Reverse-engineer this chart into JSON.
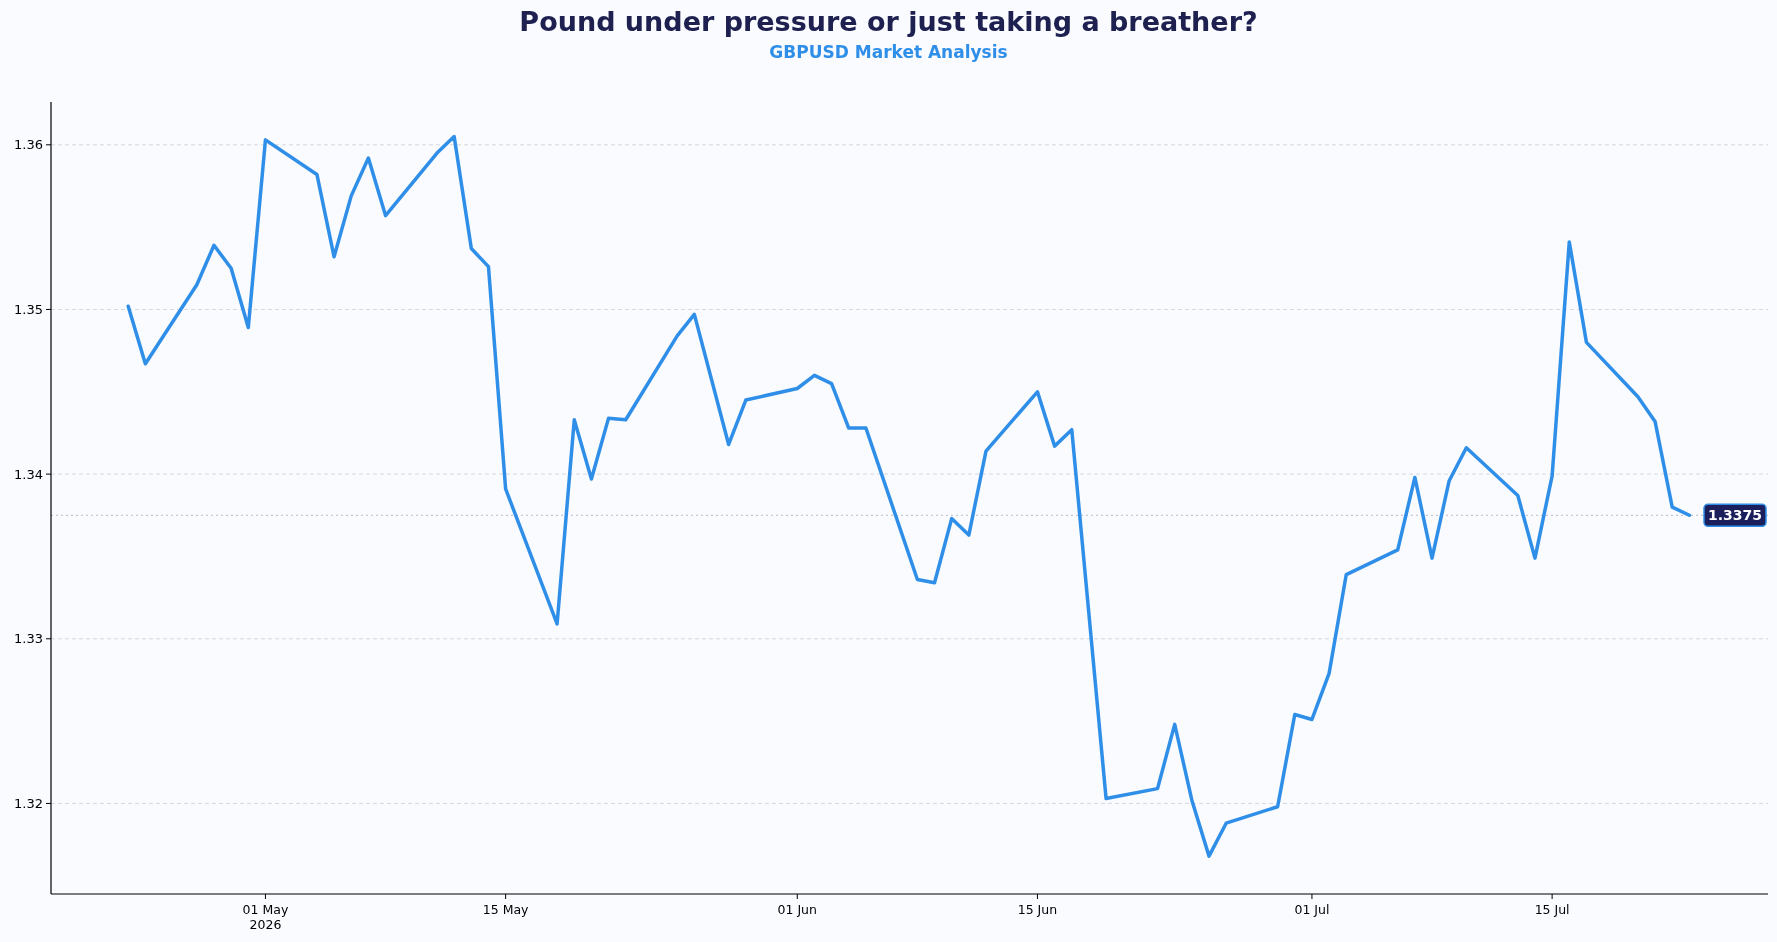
{
  "chart_data": {
    "type": "line",
    "title": "Pound under pressure  or just taking a breather?",
    "subtitle": "GBPUSD Market Analysis",
    "x": [
      "2026-04-23",
      "2026-04-24",
      "2026-04-27",
      "2026-04-28",
      "2026-04-29",
      "2026-04-30",
      "2026-05-01",
      "2026-05-04",
      "2026-05-05",
      "2026-05-06",
      "2026-05-07",
      "2026-05-08",
      "2026-05-11",
      "2026-05-12",
      "2026-05-13",
      "2026-05-14",
      "2026-05-15",
      "2026-05-18",
      "2026-05-19",
      "2026-05-20",
      "2026-05-21",
      "2026-05-22",
      "2026-05-25",
      "2026-05-26",
      "2026-05-28",
      "2026-05-29",
      "2026-06-01",
      "2026-06-02",
      "2026-06-03",
      "2026-06-04",
      "2026-06-05",
      "2026-06-08",
      "2026-06-09",
      "2026-06-10",
      "2026-06-11",
      "2026-06-12",
      "2026-06-15",
      "2026-06-16",
      "2026-06-17",
      "2026-06-19",
      "2026-06-22",
      "2026-06-23",
      "2026-06-24",
      "2026-06-25",
      "2026-06-26",
      "2026-06-29",
      "2026-06-30",
      "2026-07-01",
      "2026-07-02",
      "2026-07-03",
      "2026-07-06",
      "2026-07-07",
      "2026-07-08",
      "2026-07-09",
      "2026-07-10",
      "2026-07-13",
      "2026-07-14",
      "2026-07-15",
      "2026-07-16",
      "2026-07-17",
      "2026-07-20",
      "2026-07-21",
      "2026-07-22",
      "2026-07-23"
    ],
    "series": [
      {
        "color": "#2f8fe8",
        "values": [
          1.3502,
          1.3467,
          1.3515,
          1.3539,
          1.3525,
          1.3489,
          1.3603,
          1.3582,
          1.3532,
          1.3569,
          1.3592,
          1.3557,
          1.3595,
          1.3605,
          1.3537,
          1.3526,
          1.3391,
          1.3309,
          1.3433,
          1.3397,
          1.3434,
          1.3433,
          1.3484,
          1.3497,
          1.3418,
          1.3445,
          1.3452,
          1.346,
          1.3455,
          1.3428,
          1.3428,
          1.3336,
          1.3334,
          1.3373,
          1.3363,
          1.3414,
          1.345,
          1.3417,
          1.3427,
          1.3203,
          1.3209,
          1.3248,
          1.3202,
          1.3168,
          1.3188,
          1.3198,
          1.3254,
          1.3251,
          1.3279,
          1.3339,
          1.3354,
          1.3398,
          1.3349,
          1.3396,
          1.3416,
          1.3387,
          1.3349,
          1.3399,
          1.3541,
          1.348,
          1.3447,
          1.3432,
          1.338,
          1.3375
        ]
      }
    ],
    "xlim": [
      "2026-04-18T12:00",
      "2026-07-27T14:00"
    ],
    "xticks": [
      {
        "value": "2026-05-01",
        "label": "01 May\n2026"
      },
      {
        "value": "2026-05-15",
        "label": "15 May"
      },
      {
        "value": "2026-06-01",
        "label": "01 Jun"
      },
      {
        "value": "2026-06-15",
        "label": "15 Jun"
      },
      {
        "value": "2026-07-01",
        "label": "01 Jul"
      },
      {
        "value": "2026-07-15",
        "label": "15 Jul"
      }
    ],
    "ylim": [
      1.3145,
      1.3626
    ],
    "yticks": [
      1.32,
      1.33,
      1.34,
      1.35,
      1.36
    ],
    "grid": "y",
    "line_style": "solid",
    "ref_lines": [
      {
        "axis": "y",
        "value": 1.3375,
        "label": "1.3375",
        "color": "#b8bcc8",
        "line_style": "dotted"
      }
    ]
  }
}
